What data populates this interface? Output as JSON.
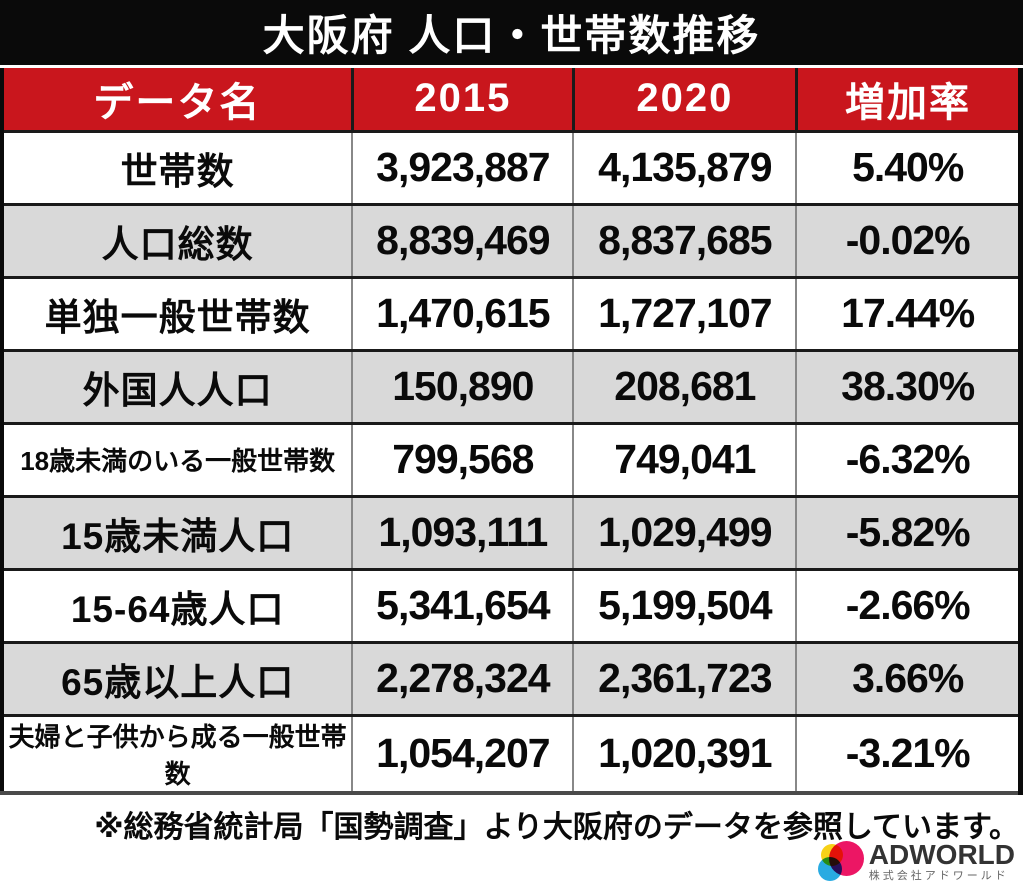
{
  "title": "大阪府 人口・世帯数推移",
  "table": {
    "headers": [
      "データ名",
      "2015",
      "2020",
      "増加率"
    ],
    "rows": [
      {
        "label": "世帯数",
        "v2015": "3,923,887",
        "v2020": "4,135,879",
        "rate": "5.40%"
      },
      {
        "label": "人口総数",
        "v2015": "8,839,469",
        "v2020": "8,837,685",
        "rate": "-0.02%"
      },
      {
        "label": "単独一般世帯数",
        "v2015": "1,470,615",
        "v2020": "1,727,107",
        "rate": "17.44%"
      },
      {
        "label": "外国人人口",
        "v2015": "150,890",
        "v2020": "208,681",
        "rate": "38.30%"
      },
      {
        "label": "18歳未満のいる一般世帯数",
        "v2015": "799,568",
        "v2020": "749,041",
        "rate": "-6.32%"
      },
      {
        "label": "15歳未満人口",
        "v2015": "1,093,111",
        "v2020": "1,029,499",
        "rate": "-5.82%"
      },
      {
        "label": "15-64歳人口",
        "v2015": "5,341,654",
        "v2020": "5,199,504",
        "rate": "-2.66%"
      },
      {
        "label": "65歳以上人口",
        "v2015": "2,278,324",
        "v2020": "2,361,723",
        "rate": "3.66%"
      },
      {
        "label": "夫婦と子供から成る一般世帯数",
        "v2015": "1,054,207",
        "v2020": "1,020,391",
        "rate": "-3.21%"
      }
    ]
  },
  "footnote": "※総務省統計局「国勢調査」より大阪府のデータを参照しています。",
  "logo": {
    "name": "ADWORLD",
    "company": "株式会社アドワールド"
  },
  "colors": {
    "title_bar_bg": "#0a0a0a",
    "header_bg": "#c9161d",
    "row_alt_bg": "#d9d9d9",
    "text": "#0a0a0a",
    "logo_yellow": "#f7d117",
    "logo_cyan": "#29abe2",
    "logo_magenta": "#ec1664"
  },
  "chart_data": {
    "type": "table",
    "title": "大阪府 人口・世帯数推移",
    "columns": [
      "データ名",
      "2015",
      "2020",
      "増加率"
    ],
    "rows": [
      [
        "世帯数",
        3923887,
        4135879,
        "5.40%"
      ],
      [
        "人口総数",
        8839469,
        8837685,
        "-0.02%"
      ],
      [
        "単独一般世帯数",
        1470615,
        1727107,
        "17.44%"
      ],
      [
        "外国人人口",
        150890,
        208681,
        "38.30%"
      ],
      [
        "18歳未満のいる一般世帯数",
        799568,
        749041,
        "-6.32%"
      ],
      [
        "15歳未満人口",
        1093111,
        1029499,
        "-5.82%"
      ],
      [
        "15-64歳人口",
        5341654,
        5199504,
        "-2.66%"
      ],
      [
        "65歳以上人口",
        2278324,
        2361723,
        "3.66%"
      ],
      [
        "夫婦と子供から成る一般世帯数",
        1054207,
        1020391,
        "-3.21%"
      ]
    ],
    "source_note": "※総務省統計局「国勢調査」より大阪府のデータを参照しています。"
  }
}
